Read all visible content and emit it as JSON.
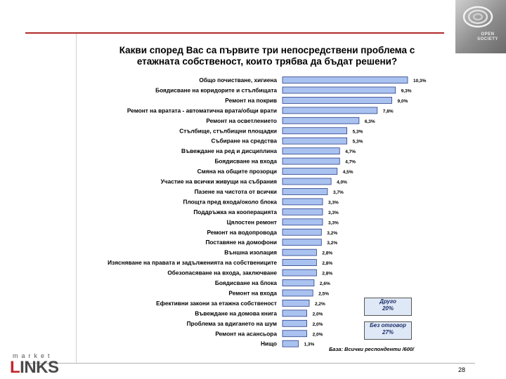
{
  "slide": {
    "title_line1": "Какви според Вас са първите три непосредствени проблема с",
    "title_line2": "етажната собственост, които трябва да бъдат решени?",
    "page_number": "28",
    "brand_top": "market",
    "brand_main_first": "L",
    "brand_main_rest": "INKS",
    "base_note": "База: Всички респонденти /600/"
  },
  "notes": {
    "other_line1": "Друго",
    "other_line2": "20%",
    "noanswer_line1": "Без отговор",
    "noanswer_line2": "27%"
  },
  "logo": {
    "text": "OPEN SOCIETY"
  },
  "colors": {
    "bar_fill": "#a9c2f0",
    "bar_stroke": "#2b3f8a",
    "rule": "#b02a2a"
  },
  "chart_data": {
    "type": "bar",
    "orientation": "horizontal",
    "title": "Какви според Вас са първите три непосредствени проблема с етажната собственост, които трябва да бъдат решени?",
    "categories": [
      "Общо почистване, хигиена",
      "Боядисване на коридорите и стълбищата",
      "Ремонт на покрив",
      "Ремонт на вратата - автоматична врата/общи врати",
      "Ремонт на осветлението",
      "Стълбище, стълбищни площадки",
      "Събиране на средства",
      "Въвеждане на ред и дисциплина",
      "Боядисване на входа",
      "Смяна на общите прозорци",
      "Участие на всички живущи на събрания",
      "Пазене на чистота от всички",
      "Площта пред входа/около блока",
      "Поддръжка на кооперацията",
      "Цялостен ремонт",
      "Ремонт на водопровода",
      "Поставяне на домофони",
      "Външна изолация",
      "Изясняване на правата и задълженията на собствениците",
      "Обезопасяване на входа, заключване",
      "Боядисване на блока",
      "Ремонт на входа",
      "Ефективни закони за етажна собственост",
      "Въвеждане на домова книга",
      "Проблема за вдигането на шум",
      "Ремонт на асансьора",
      "Нищо"
    ],
    "values": [
      10.3,
      9.3,
      9.0,
      7.8,
      6.3,
      5.3,
      5.3,
      4.7,
      4.7,
      4.5,
      4.0,
      3.7,
      3.3,
      3.3,
      3.3,
      3.2,
      3.2,
      2.8,
      2.8,
      2.8,
      2.6,
      2.5,
      2.2,
      2.0,
      2.0,
      2.0,
      1.3
    ],
    "value_labels": [
      "10,3%",
      "9,3%",
      "9,0%",
      "7,8%",
      "6,3%",
      "5,3%",
      "5,3%",
      "4,7%",
      "4,7%",
      "4,5%",
      "4,0%",
      "3,7%",
      "3,3%",
      "3,3%",
      "3,3%",
      "3,2%",
      "3,2%",
      "2,8%",
      "2,8%",
      "2,8%",
      "2,6%",
      "2,5%",
      "2,2%",
      "2,0%",
      "2,0%",
      "2,0%",
      "1,3%"
    ],
    "unit": "%",
    "grid": false,
    "legend": "none"
  }
}
